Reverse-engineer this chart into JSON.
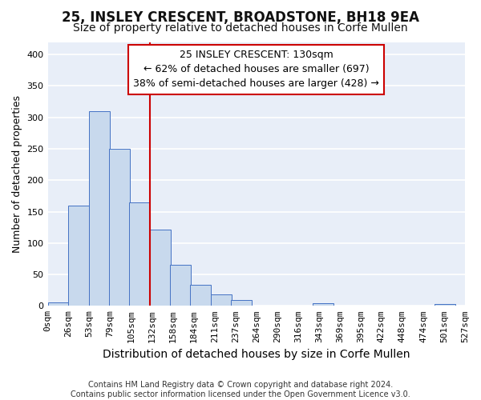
{
  "title": "25, INSLEY CRESCENT, BROADSTONE, BH18 9EA",
  "subtitle": "Size of property relative to detached houses in Corfe Mullen",
  "xlabel": "Distribution of detached houses by size in Corfe Mullen",
  "ylabel": "Number of detached properties",
  "footer_lines": [
    "Contains HM Land Registry data © Crown copyright and database right 2024.",
    "Contains public sector information licensed under the Open Government Licence v3.0."
  ],
  "bar_left_edges": [
    0,
    26,
    53,
    79,
    105,
    132,
    158,
    184,
    211,
    237,
    264,
    290,
    316,
    343,
    369,
    395,
    422,
    448,
    474,
    501
  ],
  "bar_heights": [
    5,
    160,
    310,
    250,
    165,
    122,
    65,
    33,
    18,
    9,
    0,
    0,
    0,
    4,
    0,
    0,
    0,
    0,
    0,
    3
  ],
  "bin_width": 27,
  "bar_color": "#c8d9ed",
  "bar_edge_color": "#4472c4",
  "x_tick_labels": [
    "0sqm",
    "26sqm",
    "53sqm",
    "79sqm",
    "105sqm",
    "132sqm",
    "158sqm",
    "184sqm",
    "211sqm",
    "237sqm",
    "264sqm",
    "290sqm",
    "316sqm",
    "343sqm",
    "369sqm",
    "395sqm",
    "422sqm",
    "448sqm",
    "474sqm",
    "501sqm",
    "527sqm"
  ],
  "ylim": [
    0,
    420
  ],
  "yticks": [
    0,
    50,
    100,
    150,
    200,
    250,
    300,
    350,
    400
  ],
  "vline_x": 132,
  "vline_color": "#cc0000",
  "annotation_title": "25 INSLEY CRESCENT: 130sqm",
  "annotation_line1": "← 62% of detached houses are smaller (697)",
  "annotation_line2": "38% of semi-detached houses are larger (428) →",
  "annotation_box_edge_color": "#cc0000",
  "plot_bg_color": "#e8eef8",
  "fig_bg_color": "#ffffff",
  "grid_color": "#ffffff",
  "title_fontsize": 12,
  "subtitle_fontsize": 10,
  "xlabel_fontsize": 10,
  "ylabel_fontsize": 9,
  "tick_fontsize": 8,
  "annotation_fontsize": 9,
  "footer_fontsize": 7
}
